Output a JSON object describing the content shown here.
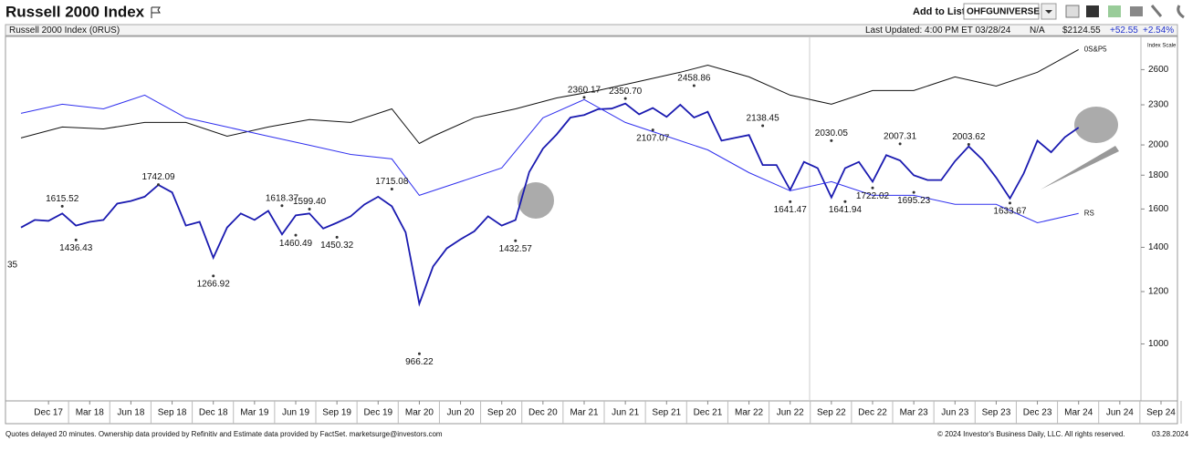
{
  "header": {
    "title": "Russell 2000 Index",
    "add_to_list": "Add to List:",
    "list_name": "OHFGUNIVERSE"
  },
  "info_bar": {
    "name": "Russell 2000 Index  (0RUS)",
    "last_updated": "Last Updated: 4:00 PM ET 03/28/24",
    "status": "N/A",
    "price": "$2124.55",
    "change": "+52.55",
    "change_pct": "+2.54%"
  },
  "footer": {
    "left": "Quotes delayed 20 minutes. Ownership data provided by Refinitiv and Estimate data provided by FactSet. marketsurge@investors.com",
    "right": "© 2024 Investor's Business Daily, LLC. All rights reserved.",
    "date": "03.28.2024"
  },
  "chart_data": {
    "type": "line",
    "log_scale": true,
    "scale_label": "Index Scale",
    "edge_label": "35",
    "ylim": [
      820,
      2900
    ],
    "yticks": [
      1000,
      1200,
      1400,
      1600,
      1800,
      2000,
      2300,
      2600
    ],
    "xlim": [
      "2017-09",
      "2024-09"
    ],
    "xticks": [
      {
        "value": "2017-12",
        "label": "Dec 17"
      },
      {
        "value": "2018-03",
        "label": "Mar 18"
      },
      {
        "value": "2018-06",
        "label": "Jun 18"
      },
      {
        "value": "2018-09",
        "label": "Sep 18"
      },
      {
        "value": "2018-12",
        "label": "Dec 18"
      },
      {
        "value": "2019-03",
        "label": "Mar 19"
      },
      {
        "value": "2019-06",
        "label": "Jun 19"
      },
      {
        "value": "2019-09",
        "label": "Sep 19"
      },
      {
        "value": "2019-12",
        "label": "Dec 19"
      },
      {
        "value": "2020-03",
        "label": "Mar 20"
      },
      {
        "value": "2020-06",
        "label": "Jun 20"
      },
      {
        "value": "2020-09",
        "label": "Sep 20"
      },
      {
        "value": "2020-12",
        "label": "Dec 20"
      },
      {
        "value": "2021-03",
        "label": "Mar 21"
      },
      {
        "value": "2021-06",
        "label": "Jun 21"
      },
      {
        "value": "2021-09",
        "label": "Sep 21"
      },
      {
        "value": "2021-12",
        "label": "Dec 21"
      },
      {
        "value": "2022-03",
        "label": "Mar 22"
      },
      {
        "value": "2022-06",
        "label": "Jun 22"
      },
      {
        "value": "2022-09",
        "label": "Sep 22"
      },
      {
        "value": "2022-12",
        "label": "Dec 22"
      },
      {
        "value": "2023-03",
        "label": "Mar 23"
      },
      {
        "value": "2023-06",
        "label": "Jun 23"
      },
      {
        "value": "2023-09",
        "label": "Sep 23"
      },
      {
        "value": "2023-12",
        "label": "Dec 23"
      },
      {
        "value": "2024-03",
        "label": "Mar 24"
      },
      {
        "value": "2024-06",
        "label": "Jun 24"
      },
      {
        "value": "2024-09",
        "label": "Sep 24"
      }
    ],
    "series": [
      {
        "color": "#1a1ab0",
        "x": [
          "2017-10",
          "2017-11",
          "2017-12",
          "2018-01",
          "2018-02",
          "2018-03",
          "2018-04",
          "2018-05",
          "2018-06",
          "2018-07",
          "2018-08",
          "2018-09",
          "2018-10",
          "2018-11",
          "2018-12",
          "2019-01",
          "2019-02",
          "2019-03",
          "2019-04",
          "2019-05",
          "2019-06",
          "2019-07",
          "2019-08",
          "2019-09",
          "2019-10",
          "2019-11",
          "2019-12",
          "2020-01",
          "2020-02",
          "2020-03",
          "2020-04",
          "2020-05",
          "2020-06",
          "2020-07",
          "2020-08",
          "2020-09",
          "2020-10",
          "2020-11",
          "2020-12",
          "2021-01",
          "2021-02",
          "2021-03",
          "2021-04",
          "2021-05",
          "2021-06",
          "2021-07",
          "2021-08",
          "2021-09",
          "2021-10",
          "2021-11",
          "2021-12",
          "2022-01",
          "2022-02",
          "2022-03",
          "2022-04",
          "2022-05",
          "2022-06",
          "2022-07",
          "2022-08",
          "2022-09",
          "2022-10",
          "2022-11",
          "2022-12",
          "2023-01",
          "2023-02",
          "2023-03",
          "2023-04",
          "2023-05",
          "2023-06",
          "2023-07",
          "2023-08",
          "2023-09",
          "2023-10",
          "2023-11",
          "2023-12",
          "2024-01",
          "2024-02",
          "2024-03"
        ],
        "values": [
          1500,
          1540,
          1535,
          1575,
          1510,
          1530,
          1540,
          1630,
          1645,
          1670,
          1740,
          1695,
          1510,
          1530,
          1350,
          1500,
          1575,
          1540,
          1590,
          1465,
          1565,
          1575,
          1495,
          1525,
          1560,
          1625,
          1670,
          1615,
          1475,
          1150,
          1310,
          1395,
          1440,
          1480,
          1560,
          1510,
          1540,
          1820,
          1975,
          2075,
          2200,
          2220,
          2265,
          2270,
          2310,
          2225,
          2275,
          2205,
          2300,
          2200,
          2245,
          2030,
          2050,
          2070,
          1865,
          1865,
          1710,
          1885,
          1845,
          1665,
          1845,
          1885,
          1760,
          1930,
          1895,
          1800,
          1770,
          1770,
          1890,
          1990,
          1900,
          1785,
          1660,
          1810,
          2030,
          1950,
          2055,
          2125
        ]
      },
      {
        "name": "0S&P5",
        "color": "#111111",
        "x": [
          "2017-10",
          "2018-01",
          "2018-04",
          "2018-07",
          "2018-10",
          "2019-01",
          "2019-04",
          "2019-07",
          "2019-10",
          "2020-01",
          "2020-03",
          "2020-04",
          "2020-07",
          "2020-10",
          "2021-01",
          "2021-04",
          "2021-07",
          "2021-10",
          "2021-12",
          "2022-03",
          "2022-06",
          "2022-09",
          "2022-12",
          "2023-03",
          "2023-06",
          "2023-09",
          "2023-12",
          "2024-03"
        ],
        "values": [
          2049,
          2129,
          2115,
          2163,
          2163,
          2062,
          2129,
          2184,
          2163,
          2268,
          2010,
          2062,
          2198,
          2268,
          2356,
          2417,
          2495,
          2576,
          2641,
          2535,
          2379,
          2305,
          2417,
          2417,
          2535,
          2455,
          2576,
          2788
        ]
      },
      {
        "name": "RS",
        "color": "#3030ee",
        "x": [
          "2017-10",
          "2018-01",
          "2018-04",
          "2018-07",
          "2018-10",
          "2019-01",
          "2019-04",
          "2019-07",
          "2019-10",
          "2020-01",
          "2020-03",
          "2020-06",
          "2020-09",
          "2020-12",
          "2021-03",
          "2021-06",
          "2021-09",
          "2021-12",
          "2022-03",
          "2022-06",
          "2022-09",
          "2022-12",
          "2023-03",
          "2023-06",
          "2023-09",
          "2023-12",
          "2024-03"
        ],
        "values": [
          2233,
          2305,
          2268,
          2379,
          2198,
          2129,
          2062,
          1998,
          1935,
          1905,
          1678,
          1760,
          1846,
          2198,
          2342,
          2163,
          2062,
          1966,
          1816,
          1705,
          1760,
          1678,
          1678,
          1626,
          1626,
          1525,
          1575
        ]
      }
    ],
    "annotations": [
      {
        "x": "2018-01",
        "value": 1615.52
      },
      {
        "x": "2018-02",
        "value": 1436.43
      },
      {
        "x": "2018-08",
        "value": 1742.09
      },
      {
        "x": "2018-12",
        "value": 1266.92
      },
      {
        "x": "2019-05",
        "value": 1618.37
      },
      {
        "x": "2019-06",
        "value": 1460.49
      },
      {
        "x": "2019-07",
        "value": {
          "value": 1599.4,
          "label": "1599.40"
        }
      },
      {
        "x": "2019-09",
        "value": 1450.32
      },
      {
        "x": "2020-01",
        "value": 1715.08
      },
      {
        "x": "2020-03",
        "value": 966.22
      },
      {
        "x": "2020-10",
        "value": 1432.57
      },
      {
        "x": "2021-03",
        "value": 2360.17
      },
      {
        "x": "2021-06",
        "value": {
          "value": 2350.7,
          "label": "2350.70"
        }
      },
      {
        "x": "2021-08",
        "value": 2107.07
      },
      {
        "x": "2021-11",
        "value": 2458.86
      },
      {
        "x": "2022-04",
        "value": 2138.45
      },
      {
        "x": "2022-06",
        "value": 1641.47
      },
      {
        "x": "2022-09",
        "value": 2030.05
      },
      {
        "x": "2022-10",
        "value": 1641.94
      },
      {
        "x": "2022-12",
        "value": 1722.02
      },
      {
        "x": "2023-02",
        "value": 2007.31
      },
      {
        "x": "2023-03",
        "value": 1695.23
      },
      {
        "x": "2023-07",
        "value": 2003.62
      },
      {
        "x": "2023-10",
        "value": 1633.67
      }
    ]
  }
}
